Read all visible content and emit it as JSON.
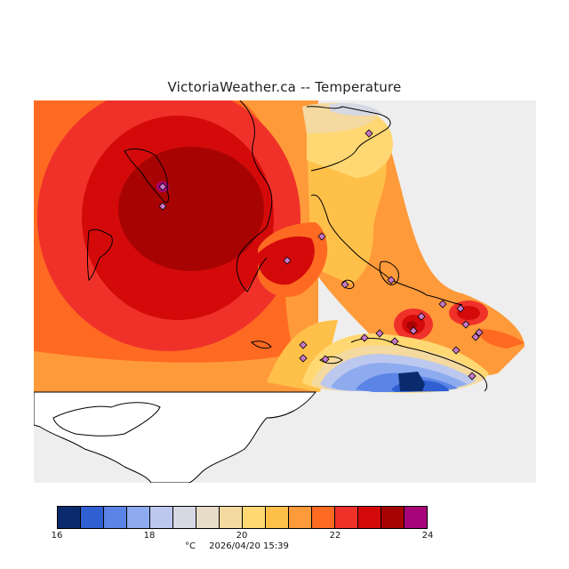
{
  "map": {
    "title": "VictoriaWeather.ca -- Temperature",
    "background": "#eeeeee",
    "land_unshaded": "#ffffff",
    "station_marker_color": "#c878c8",
    "station_count": 24
  },
  "legend": {
    "unit": "°C",
    "timestamp": "2026/04/20 15:39",
    "ticks": [
      "16",
      "18",
      "20",
      "22",
      "24"
    ],
    "colors": [
      "#0c2a6e",
      "#2f5fd0",
      "#5b84e6",
      "#8eabef",
      "#bcc8ee",
      "#d6d8e4",
      "#e6dcc8",
      "#f4d9a0",
      "#ffd873",
      "#ffc04a",
      "#ff9a3a",
      "#ff6a22",
      "#f0312a",
      "#d40a0a",
      "#a80303",
      "#a8047a"
    ]
  }
}
